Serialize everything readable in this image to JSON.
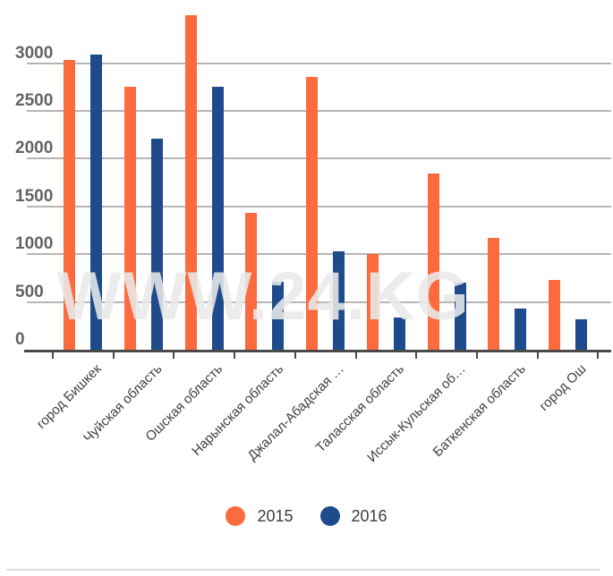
{
  "chart_data": {
    "type": "bar",
    "title": "",
    "xlabel": "",
    "ylabel": "",
    "categories": [
      "город Бишкек",
      "Чуйская область",
      "Ошская область",
      "Нарынская область",
      "Джалал-Абадская …",
      "Таласская область",
      "Иссык-Кульская об…",
      "Баткенская область",
      "город Ош"
    ],
    "series": [
      {
        "name": "2015",
        "color": "#fc6b3e",
        "values": [
          3030,
          2750,
          3500,
          1430,
          2860,
          1000,
          1840,
          1170,
          730
        ]
      },
      {
        "name": "2016",
        "color": "#1e4b8b",
        "values": [
          3090,
          2210,
          2750,
          710,
          1030,
          340,
          700,
          430,
          320
        ]
      }
    ],
    "y_ticks": [
      0,
      500,
      1000,
      1500,
      2000,
      2500,
      3000
    ],
    "ylim": [
      0,
      3660
    ],
    "grid": true,
    "legend_position": "bottom",
    "watermark": "WWW.24.KG",
    "colors": {
      "gridline": "#b5b5b5",
      "axis": "#4a4a4a",
      "y_label": "#636363",
      "x_label": "#3f3f3f",
      "legend_text": "#3d3d3d"
    }
  }
}
